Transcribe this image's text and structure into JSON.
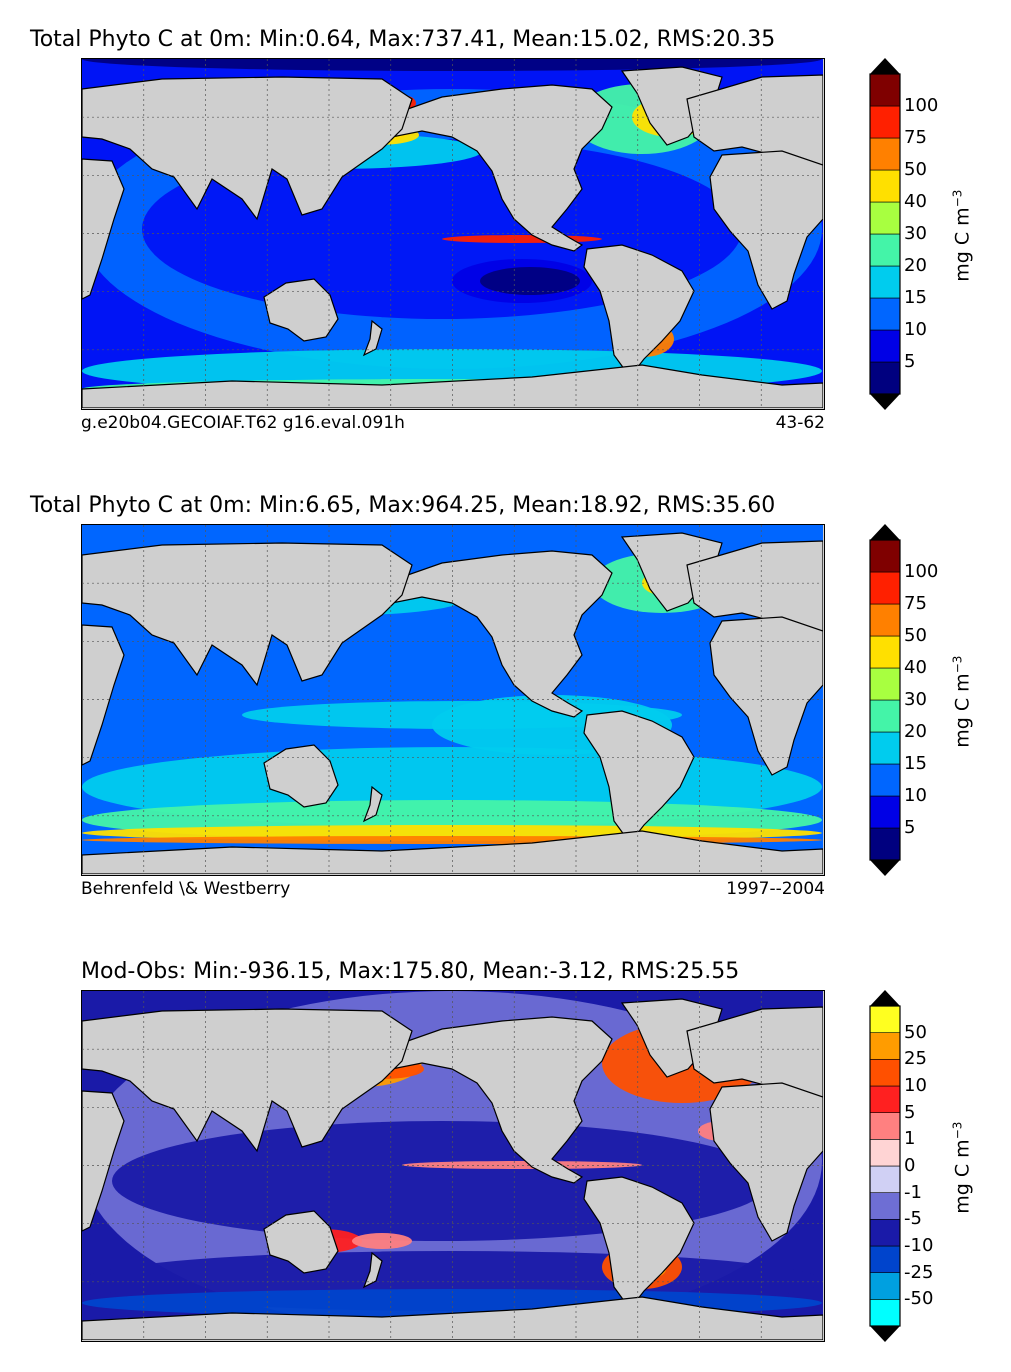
{
  "panels": [
    {
      "title": "Total Phyto C at 0m: Min:0.64, Max:737.41, Mean:15.02, RMS:20.35",
      "footer_left": "g.e20b04.GECOIAF.T62 g16.eval.091h",
      "footer_right": "43-62",
      "unit": "mg C m",
      "unit_exp": "−3",
      "colorbar": {
        "labels": [
          "5",
          "10",
          "15",
          "20",
          "30",
          "40",
          "50",
          "75",
          "100"
        ],
        "colors": [
          "#00007f",
          "#0000e6",
          "#0066ff",
          "#00ccee",
          "#44f4a8",
          "#a8ff40",
          "#ffe000",
          "#ff8000",
          "#ff2000",
          "#7f0000"
        ]
      },
      "ocean_color": "#0014f5"
    },
    {
      "title": "Total Phyto C at 0m: Min:6.65, Max:964.25, Mean:18.92, RMS:35.60",
      "footer_left": "Behrenfeld \\& Westberry",
      "footer_right": "1997--2004",
      "unit": "mg C m",
      "unit_exp": "−3",
      "colorbar": {
        "labels": [
          "5",
          "10",
          "15",
          "20",
          "30",
          "40",
          "50",
          "75",
          "100"
        ],
        "colors": [
          "#00007f",
          "#0000e6",
          "#0066ff",
          "#00ccee",
          "#44f4a8",
          "#a8ff40",
          "#ffe000",
          "#ff8000",
          "#ff2000",
          "#7f0000"
        ]
      },
      "ocean_color": "#0066ff"
    },
    {
      "title": "Mod-Obs: Min:-936.15, Max:175.80, Mean:-3.12, RMS:25.55",
      "footer_left": "",
      "footer_right": "",
      "unit": "mg C m",
      "unit_exp": "−3",
      "colorbar": {
        "labels": [
          "-50",
          "-25",
          "-10",
          "-5",
          "-1",
          "0",
          "1",
          "5",
          "10",
          "25",
          "50"
        ],
        "colors": [
          "#00ffff",
          "#00a0e0",
          "#0044cc",
          "#1a1aa8",
          "#6e6ed4",
          "#d0d0f4",
          "#ffd4d4",
          "#ff8080",
          "#ff2020",
          "#ff5000",
          "#ff9c00",
          "#ffff20"
        ]
      },
      "ocean_color": "#1a1aa8"
    }
  ]
}
